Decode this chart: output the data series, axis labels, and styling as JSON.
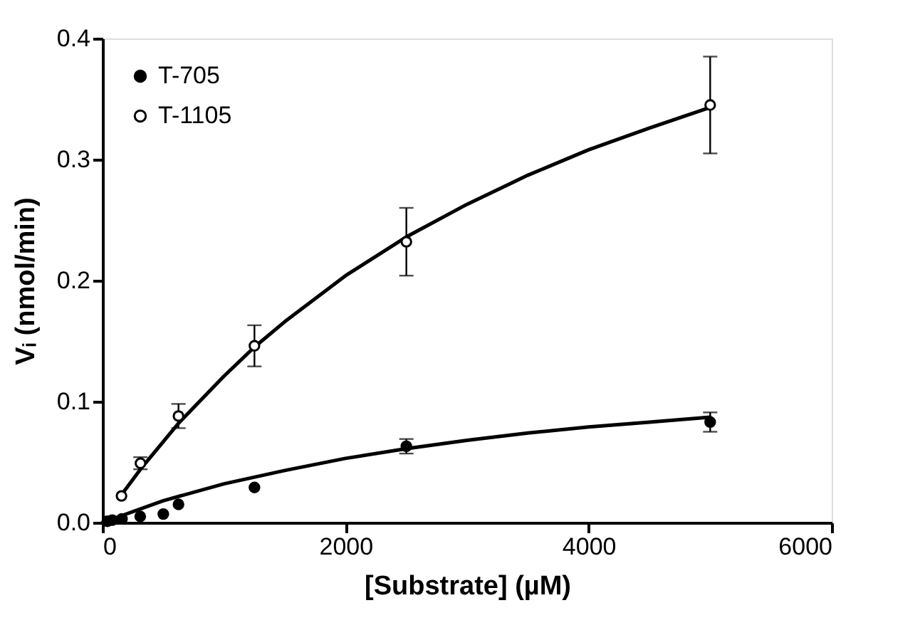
{
  "chart_data": {
    "type": "scatter",
    "xlabel": "[Substrate] (µM)",
    "ylabel": "Vᵢ (nmol/min)",
    "xlim": [
      0,
      6000
    ],
    "ylim": [
      0,
      0.4
    ],
    "xticks": [
      0,
      2000,
      4000,
      6000
    ],
    "yticks": [
      {
        "value": 0,
        "label": "0.0"
      },
      {
        "value": 0.1,
        "label": "0.1"
      },
      {
        "value": 0.2,
        "label": "0.2"
      },
      {
        "value": 0.3,
        "label": "0.3"
      },
      {
        "value": 0.4,
        "label": "0.4"
      }
    ],
    "legend": "top left",
    "marker": "circle",
    "grid": false,
    "series": [
      {
        "name": "T-705",
        "color": "#000000",
        "x": [
          40,
          80,
          160,
          310,
          500,
          625,
          1250,
          2500,
          5000
        ],
        "values": [
          0.001,
          0.002,
          0.003,
          0.005,
          0.007,
          0.015,
          0.029,
          0.063,
          0.083
        ],
        "errors": [
          null,
          null,
          null,
          null,
          null,
          null,
          null,
          0.006,
          0.008
        ]
      },
      {
        "name": "T-1105",
        "color": "#000000",
        "x": [
          156,
          312,
          625,
          1250,
          2500,
          5000
        ],
        "values": [
          0.022,
          0.049,
          0.088,
          0.146,
          0.232,
          0.345
        ],
        "errors": [
          null,
          0.005,
          0.01,
          0.017,
          0.028,
          0.04
        ]
      },
      {
        "type": "line",
        "marker": "none",
        "line_style": "solid",
        "color": "#000000",
        "x": [
          0,
          500,
          1000,
          1500,
          2000,
          2500,
          3000,
          3500,
          4000,
          4500,
          5000
        ],
        "values": [
          0,
          0.018,
          0.032,
          0.043,
          0.053,
          0.061,
          0.068,
          0.074,
          0.079,
          0.083,
          0.087
        ]
      },
      {
        "type": "line",
        "marker": "none",
        "line_style": "solid",
        "color": "#000000",
        "x": [
          156,
          312,
          625,
          1000,
          1250,
          1500,
          2000,
          2500,
          3000,
          3500,
          4000,
          4500,
          5000
        ],
        "values": [
          0.023,
          0.044,
          0.082,
          0.121,
          0.145,
          0.166,
          0.204,
          0.236,
          0.263,
          0.287,
          0.308,
          0.326,
          0.343
        ]
      }
    ]
  }
}
